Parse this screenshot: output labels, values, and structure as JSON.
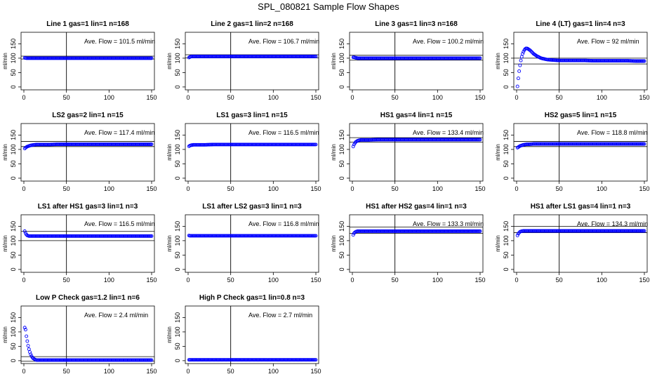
{
  "figure": {
    "title": "SPL_080821  Sample Flow Shapes",
    "colors": {
      "points": "#0000ff",
      "lines": "#000000",
      "background": "#ffffff"
    }
  },
  "chart_data": [
    {
      "type": "scatter",
      "title": "Line 1 gas=1 lin=1 n=168",
      "ylabel": "ml/min",
      "annotation": "Ave. Flow =  101.5  ml/min",
      "xlim": [
        0,
        150
      ],
      "ylim": [
        -10,
        190
      ],
      "xticks": [
        0,
        50,
        100,
        150
      ],
      "yticks": [
        0,
        50,
        100,
        150
      ],
      "vline": 50,
      "hlines": [
        97,
        107
      ],
      "series": [
        {
          "x": [
            1,
            2,
            3,
            4,
            5,
            6,
            8,
            10,
            15,
            20,
            30,
            40,
            50,
            60,
            70,
            80,
            90,
            100,
            110,
            120,
            130,
            140,
            150
          ],
          "y": [
            101,
            100.5,
            100,
            100,
            100,
            100,
            100,
            100,
            100,
            100,
            100,
            100,
            100,
            100,
            100,
            100,
            100,
            100,
            100,
            100,
            100,
            100,
            100
          ]
        }
      ]
    },
    {
      "type": "scatter",
      "title": "Line 2 gas=1 lin=2 n=168",
      "ylabel": "ml/min",
      "annotation": "Ave. Flow =  106.7  ml/min",
      "xlim": [
        0,
        150
      ],
      "ylim": [
        -10,
        190
      ],
      "xticks": [
        0,
        50,
        100,
        150
      ],
      "yticks": [
        0,
        50,
        100,
        150
      ],
      "vline": 50,
      "hlines": [
        101,
        112
      ],
      "series": [
        {
          "x": [
            1,
            2,
            3,
            4,
            5,
            6,
            8,
            10,
            15,
            20,
            30,
            40,
            50,
            60,
            70,
            80,
            90,
            100,
            110,
            120,
            130,
            140,
            150
          ],
          "y": [
            102,
            104,
            105,
            106,
            106,
            106,
            106,
            106,
            106,
            106,
            106,
            106,
            106,
            106,
            106,
            106,
            106,
            106,
            106,
            106,
            106,
            106,
            106
          ]
        }
      ]
    },
    {
      "type": "scatter",
      "title": "Line 3 gas=1 lin=3 n=168",
      "ylabel": "ml/min",
      "annotation": "Ave. Flow =  100.2  ml/min",
      "xlim": [
        0,
        150
      ],
      "ylim": [
        -10,
        190
      ],
      "xticks": [
        0,
        50,
        100,
        150
      ],
      "yticks": [
        0,
        50,
        100,
        150
      ],
      "vline": 50,
      "hlines": [
        93,
        110
      ],
      "series": [
        {
          "x": [
            1,
            2,
            3,
            4,
            5,
            6,
            8,
            10,
            15,
            20,
            30,
            40,
            50,
            60,
            70,
            80,
            90,
            100,
            110,
            120,
            130,
            140,
            150
          ],
          "y": [
            103,
            103,
            102,
            101,
            101,
            100,
            100,
            100,
            100,
            100,
            100,
            100,
            100,
            100,
            100,
            100,
            100,
            100,
            100,
            100,
            100,
            100,
            100
          ]
        }
      ]
    },
    {
      "type": "scatter",
      "title": "Line 4 (LT) gas=1 lin=4 n=3",
      "ylabel": "ml/min",
      "annotation": "Ave. Flow =  92  ml/min",
      "xlim": [
        0,
        150
      ],
      "ylim": [
        -10,
        190
      ],
      "xticks": [
        0,
        50,
        100,
        150
      ],
      "yticks": [
        0,
        50,
        100,
        150
      ],
      "vline": 50,
      "hlines": [
        80,
        100
      ],
      "series": [
        {
          "x": [
            1,
            2,
            3,
            4,
            5,
            6,
            7,
            8,
            9,
            10,
            11,
            12,
            13,
            14,
            15,
            16,
            17,
            18,
            19,
            20,
            22,
            24,
            26,
            28,
            30,
            33,
            36,
            40,
            45,
            50,
            55,
            60,
            70,
            80,
            90,
            100,
            110,
            120,
            130,
            140,
            150
          ],
          "y": [
            2,
            30,
            55,
            75,
            92,
            105,
            115,
            122,
            128,
            132,
            134,
            134,
            133,
            131,
            129,
            127,
            124,
            121,
            118,
            115,
            111,
            107,
            104,
            101,
            99,
            97,
            95,
            94,
            93,
            92,
            92,
            92,
            92,
            92,
            91,
            91,
            91,
            91,
            91,
            90,
            90
          ]
        }
      ]
    },
    {
      "type": "scatter",
      "title": "LS2 gas=2 lin=1 n=15",
      "ylabel": "ml/min",
      "annotation": "Ave. Flow =  117.4  ml/min",
      "xlim": [
        0,
        150
      ],
      "ylim": [
        -10,
        190
      ],
      "xticks": [
        0,
        50,
        100,
        150
      ],
      "yticks": [
        0,
        50,
        100,
        150
      ],
      "vline": 50,
      "hlines": [
        110,
        128
      ],
      "series": [
        {
          "x": [
            1,
            2,
            3,
            4,
            5,
            6,
            7,
            8,
            10,
            12,
            15,
            20,
            30,
            40,
            50,
            60,
            70,
            80,
            90,
            100,
            110,
            120,
            130,
            140,
            150
          ],
          "y": [
            103,
            106,
            108,
            110,
            111,
            112,
            113,
            114,
            115,
            116,
            117,
            117,
            117,
            118,
            118,
            118,
            118,
            118,
            118,
            118,
            118,
            118,
            118,
            118,
            118
          ]
        }
      ]
    },
    {
      "type": "scatter",
      "title": "LS1 gas=3 lin=1 n=15",
      "ylabel": "ml/min",
      "annotation": "Ave. Flow =  116.5  ml/min",
      "xlim": [
        0,
        150
      ],
      "ylim": [
        -10,
        190
      ],
      "xticks": [
        0,
        50,
        100,
        150
      ],
      "yticks": [
        0,
        50,
        100,
        150
      ],
      "vline": 50,
      "hlines": [],
      "series": [
        {
          "x": [
            1,
            2,
            3,
            4,
            5,
            6,
            8,
            10,
            15,
            20,
            30,
            40,
            50,
            60,
            70,
            80,
            90,
            100,
            110,
            120,
            130,
            140,
            150
          ],
          "y": [
            111,
            113,
            114,
            115,
            115,
            116,
            116,
            116,
            116,
            116,
            117,
            117,
            117,
            117,
            117,
            117,
            117,
            117,
            117,
            117,
            117,
            117,
            117
          ]
        }
      ]
    },
    {
      "type": "scatter",
      "title": "HS1 gas=4 lin=1 n=15",
      "ylabel": "ml/min",
      "annotation": "Ave. Flow =  133.4  ml/min",
      "xlim": [
        0,
        150
      ],
      "ylim": [
        -10,
        190
      ],
      "xticks": [
        0,
        50,
        100,
        150
      ],
      "yticks": [
        0,
        50,
        100,
        150
      ],
      "vline": 50,
      "hlines": [
        125,
        141
      ],
      "series": [
        {
          "x": [
            1,
            2,
            3,
            4,
            5,
            6,
            7,
            8,
            10,
            12,
            15,
            20,
            30,
            40,
            50,
            60,
            70,
            80,
            90,
            100,
            110,
            120,
            130,
            140,
            150
          ],
          "y": [
            110,
            117,
            122,
            126,
            128,
            130,
            131,
            132,
            133,
            133,
            133,
            133,
            134,
            134,
            134,
            134,
            134,
            134,
            134,
            134,
            134,
            134,
            134,
            134,
            134
          ]
        }
      ]
    },
    {
      "type": "scatter",
      "title": "HS2 gas=5 lin=1 n=15",
      "ylabel": "ml/min",
      "annotation": "Ave. Flow =  118.8  ml/min",
      "xlim": [
        0,
        150
      ],
      "ylim": [
        -10,
        190
      ],
      "xticks": [
        0,
        50,
        100,
        150
      ],
      "yticks": [
        0,
        50,
        100,
        150
      ],
      "vline": 50,
      "hlines": [
        110,
        128
      ],
      "series": [
        {
          "x": [
            1,
            2,
            3,
            4,
            5,
            6,
            7,
            8,
            10,
            12,
            15,
            20,
            30,
            40,
            50,
            60,
            70,
            80,
            90,
            100,
            110,
            120,
            130,
            140,
            150
          ],
          "y": [
            106,
            108,
            110,
            112,
            113,
            114,
            115,
            116,
            117,
            118,
            118,
            119,
            119,
            119,
            119,
            119,
            119,
            119,
            119,
            119,
            119,
            119,
            119,
            119,
            119
          ]
        }
      ]
    },
    {
      "type": "scatter",
      "title": "LS1 after HS1 gas=3 lin=1 n=3",
      "ylabel": "ml/min",
      "annotation": "Ave. Flow =  116.5  ml/min",
      "xlim": [
        0,
        150
      ],
      "ylim": [
        -10,
        190
      ],
      "xticks": [
        0,
        50,
        100,
        150
      ],
      "yticks": [
        0,
        50,
        100,
        150
      ],
      "vline": 50,
      "hlines": [
        100,
        132
      ],
      "series": [
        {
          "x": [
            1,
            2,
            3,
            4,
            5,
            6,
            8,
            10,
            15,
            20,
            30,
            40,
            50,
            60,
            70,
            80,
            90,
            100,
            110,
            120,
            130,
            140,
            150
          ],
          "y": [
            133,
            126,
            121,
            118,
            117,
            116,
            116,
            116,
            116,
            116,
            116,
            116,
            116,
            116,
            116,
            116,
            116,
            116,
            116,
            116,
            116,
            116,
            116
          ]
        }
      ]
    },
    {
      "type": "scatter",
      "title": "LS1 after LS2 gas=3 lin=1 n=3",
      "ylabel": "ml/min",
      "annotation": "Ave. Flow =  116.8  ml/min",
      "xlim": [
        0,
        150
      ],
      "ylim": [
        -10,
        190
      ],
      "xticks": [
        0,
        50,
        100,
        150
      ],
      "yticks": [
        0,
        50,
        100,
        150
      ],
      "vline": 50,
      "hlines": [],
      "series": [
        {
          "x": [
            1,
            2,
            3,
            4,
            5,
            6,
            8,
            10,
            15,
            20,
            30,
            40,
            50,
            60,
            70,
            80,
            90,
            100,
            110,
            120,
            130,
            140,
            150
          ],
          "y": [
            118,
            117,
            117,
            117,
            117,
            117,
            117,
            117,
            117,
            117,
            117,
            117,
            117,
            117,
            117,
            117,
            117,
            117,
            117,
            117,
            117,
            117,
            117
          ]
        }
      ]
    },
    {
      "type": "scatter",
      "title": "HS1 after HS2 gas=4 lin=1 n=3",
      "ylabel": "ml/min",
      "annotation": "Ave. Flow =  133.3  ml/min",
      "xlim": [
        0,
        150
      ],
      "ylim": [
        -10,
        190
      ],
      "xticks": [
        0,
        50,
        100,
        150
      ],
      "yticks": [
        0,
        50,
        100,
        150
      ],
      "vline": 50,
      "hlines": [
        125,
        147
      ],
      "series": [
        {
          "x": [
            1,
            2,
            3,
            4,
            5,
            6,
            8,
            10,
            15,
            20,
            30,
            40,
            50,
            60,
            70,
            80,
            90,
            100,
            110,
            120,
            130,
            140,
            150
          ],
          "y": [
            120,
            126,
            129,
            131,
            132,
            133,
            133,
            133,
            133,
            133,
            133,
            133,
            133,
            133,
            133,
            133,
            133,
            133,
            133,
            133,
            133,
            133,
            133
          ]
        }
      ]
    },
    {
      "type": "scatter",
      "title": "HS1 after LS1 gas=4 lin=1 n=3",
      "ylabel": "ml/min",
      "annotation": "Ave. Flow =  134.3  ml/min",
      "xlim": [
        0,
        150
      ],
      "ylim": [
        -10,
        190
      ],
      "xticks": [
        0,
        50,
        100,
        150
      ],
      "yticks": [
        0,
        50,
        100,
        150
      ],
      "vline": 50,
      "hlines": [
        128,
        150
      ],
      "series": [
        {
          "x": [
            1,
            2,
            3,
            4,
            5,
            6,
            8,
            10,
            15,
            20,
            30,
            40,
            50,
            60,
            70,
            80,
            90,
            100,
            110,
            120,
            130,
            140,
            150
          ],
          "y": [
            118,
            124,
            128,
            131,
            132,
            133,
            134,
            134,
            134,
            134,
            134,
            134,
            134,
            134,
            134,
            134,
            134,
            134,
            134,
            134,
            134,
            134,
            134
          ]
        }
      ]
    },
    {
      "type": "scatter",
      "title": "Low P Check gas=1.2 lin=1 n=6",
      "ylabel": "ml/min",
      "annotation": "Ave. Flow =  2.4  ml/min",
      "xlim": [
        0,
        150
      ],
      "ylim": [
        -10,
        190
      ],
      "xticks": [
        0,
        50,
        100,
        150
      ],
      "yticks": [
        0,
        50,
        100,
        150
      ],
      "vline": 50,
      "hlines": [
        -2,
        14
      ],
      "series": [
        {
          "x": [
            1,
            2,
            3,
            4,
            5,
            6,
            7,
            8,
            9,
            10,
            11,
            12,
            13,
            14,
            15,
            17,
            20,
            25,
            30,
            40,
            50,
            60,
            70,
            80,
            90,
            100,
            110,
            120,
            130,
            140,
            150
          ],
          "y": [
            115,
            108,
            85,
            68,
            52,
            40,
            30,
            22,
            16,
            11,
            8,
            6,
            4,
            3,
            2,
            2,
            2,
            2,
            2,
            2,
            2,
            2,
            2,
            2,
            2,
            2,
            2,
            2,
            2,
            2,
            2
          ]
        }
      ]
    },
    {
      "type": "scatter",
      "title": "High P Check gas=1 lin=0.8 n=3",
      "ylabel": "ml/min",
      "annotation": "Ave. Flow =  2.7  ml/min",
      "xlim": [
        0,
        150
      ],
      "ylim": [
        -10,
        190
      ],
      "xticks": [
        0,
        50,
        100,
        150
      ],
      "yticks": [
        0,
        50,
        100,
        150
      ],
      "vline": 50,
      "hlines": [],
      "series": [
        {
          "x": [
            1,
            2,
            3,
            5,
            8,
            10,
            15,
            20,
            30,
            40,
            50,
            60,
            70,
            80,
            90,
            100,
            110,
            120,
            130,
            140,
            150
          ],
          "y": [
            3,
            3,
            3,
            3,
            3,
            3,
            3,
            3,
            3,
            3,
            3,
            3,
            3,
            3,
            3,
            3,
            3,
            3,
            3,
            3,
            3
          ]
        }
      ]
    }
  ]
}
